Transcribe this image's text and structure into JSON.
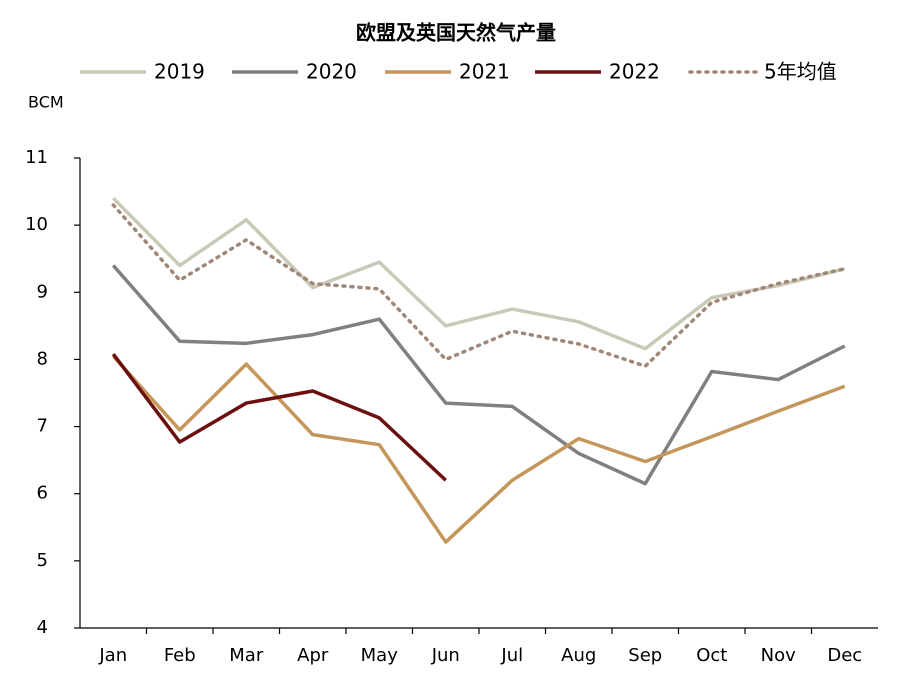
{
  "chart_data": {
    "type": "line",
    "title": "欧盟及英国天然气产量",
    "y_label": "BCM",
    "categories": [
      "Jan",
      "Feb",
      "Mar",
      "Apr",
      "May",
      "Jun",
      "Jul",
      "Aug",
      "Sep",
      "Oct",
      "Nov",
      "Dec"
    ],
    "series": [
      {
        "name": "2019",
        "color": "#c9c9b8",
        "values": [
          10.4,
          9.4,
          10.08,
          9.07,
          9.45,
          8.5,
          8.75,
          8.56,
          8.16,
          8.92,
          9.1,
          9.35
        ]
      },
      {
        "name": "2020",
        "color": "#808080",
        "values": [
          9.4,
          8.27,
          8.24,
          8.37,
          8.6,
          7.35,
          7.3,
          6.6,
          6.15,
          7.82,
          7.7,
          8.2
        ]
      },
      {
        "name": "2021",
        "color": "#c4965a",
        "values": [
          8.05,
          6.95,
          7.93,
          6.88,
          6.73,
          5.28,
          6.2,
          6.82,
          6.48,
          6.85,
          7.23,
          7.6
        ]
      },
      {
        "name": "2022",
        "color": "#6b0f0f",
        "values": [
          8.08,
          6.77,
          7.35,
          7.53,
          7.13,
          6.2,
          null,
          null,
          null,
          null,
          null,
          null
        ]
      },
      {
        "name": "5年均值",
        "color": "#a08878",
        "style": "dotted",
        "values": [
          10.3,
          9.18,
          9.78,
          9.13,
          9.05,
          8.0,
          8.42,
          8.23,
          7.9,
          8.85,
          9.13,
          9.35
        ]
      }
    ],
    "ylim": [
      4,
      11
    ],
    "yticks": [
      4,
      5,
      6,
      7,
      8,
      9,
      10,
      11
    ],
    "grid": false
  }
}
